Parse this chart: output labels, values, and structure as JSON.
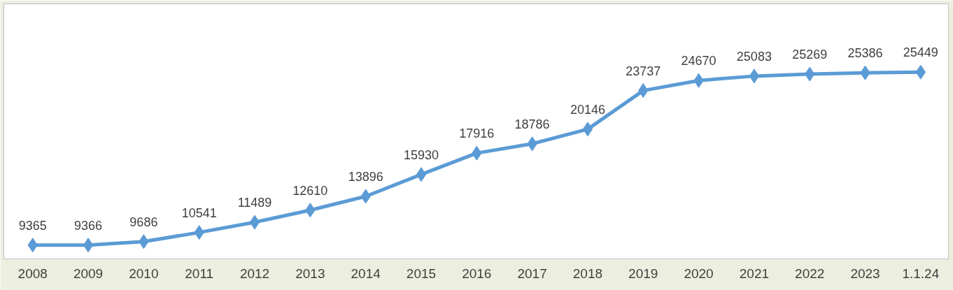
{
  "chart_data": {
    "type": "line",
    "categories": [
      "2008",
      "2009",
      "2010",
      "2011",
      "2012",
      "2013",
      "2014",
      "2015",
      "2016",
      "2017",
      "2018",
      "2019",
      "2020",
      "2021",
      "2022",
      "2023",
      "1.1.24"
    ],
    "series": [
      {
        "color": "#5b9bd5",
        "values": [
          9365,
          9366,
          9686,
          10541,
          11489,
          12610,
          13896,
          15930,
          17916,
          18786,
          20146,
          23737,
          24670,
          25083,
          25269,
          25386,
          25449
        ]
      }
    ],
    "data_labels": true,
    "marker": "diamond",
    "line_style": "solid",
    "grid": false,
    "tick_labels": "x"
  }
}
